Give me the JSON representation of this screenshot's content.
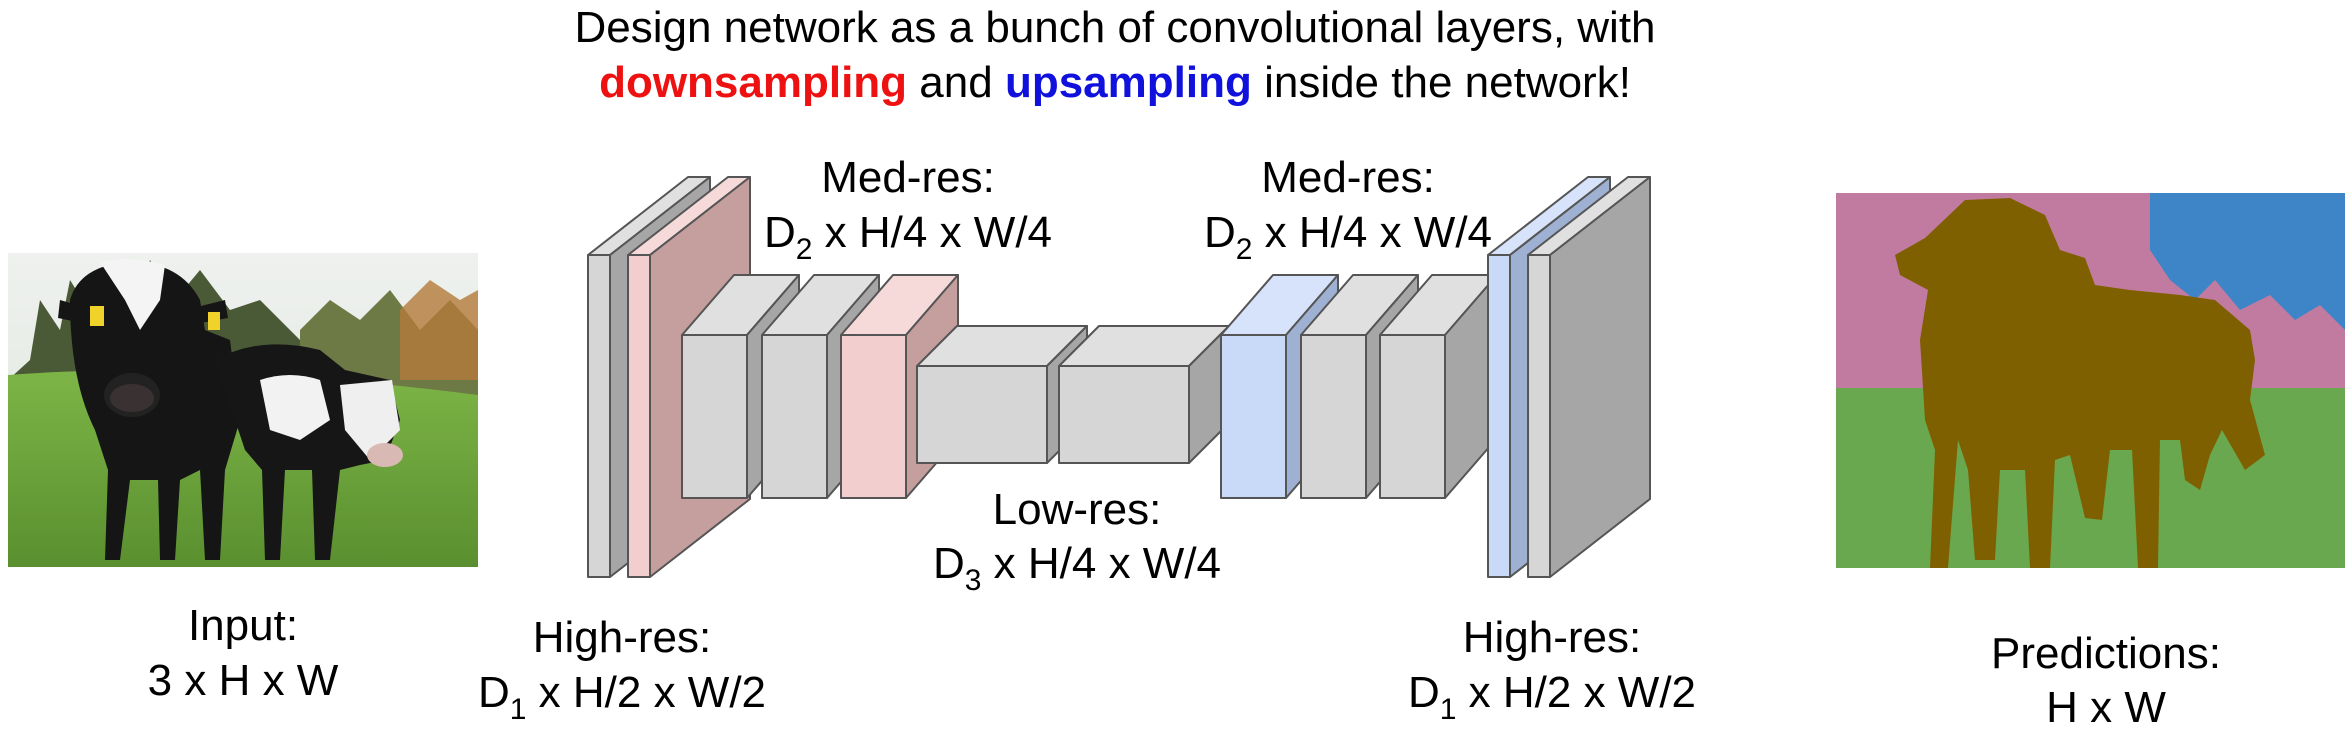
{
  "title": {
    "line1": "Design network as a bunch of convolutional layers, with",
    "down_word": "downsampling",
    "and_word": " and ",
    "up_word": "upsampling",
    "rest": " inside the network!"
  },
  "labels": {
    "input_title": "Input:",
    "input_dims": "3 x H x W",
    "highres_left_title": "High-res:",
    "highres_left_d": "D",
    "highres_left_sub": "1",
    "highres_left_rest": " x H/2 x W/2",
    "medres_left_title": "Med-res:",
    "medres_left_d": "D",
    "medres_left_sub": "2",
    "medres_left_rest": " x H/4 x W/4",
    "lowres_title": "Low-res:",
    "lowres_d": "D",
    "lowres_sub": "3",
    "lowres_rest": " x H/4 x W/4",
    "medres_right_title": "Med-res:",
    "medres_right_d": "D",
    "medres_right_sub": "2",
    "medres_right_rest": " x H/4 x W/4",
    "highres_right_title": "High-res:",
    "highres_right_d": "D",
    "highres_right_sub": "1",
    "highres_right_rest": " x H/2 x W/2",
    "pred_title": "Predictions:",
    "pred_dims": "H x W"
  },
  "colors": {
    "down": "#ee1111",
    "up": "#1111dd",
    "gray_front": "#d6d6d6",
    "gray_side": "#a6a6a6",
    "pink_front": "#f3cece",
    "pink_side": "#c59e9e",
    "blue_front": "#c9daf8",
    "blue_side": "#9fb1d3",
    "seg_pink": "#c27ba0",
    "seg_blue": "#3d85c6",
    "seg_green": "#6aa84f",
    "seg_cow": "#7f6000"
  }
}
